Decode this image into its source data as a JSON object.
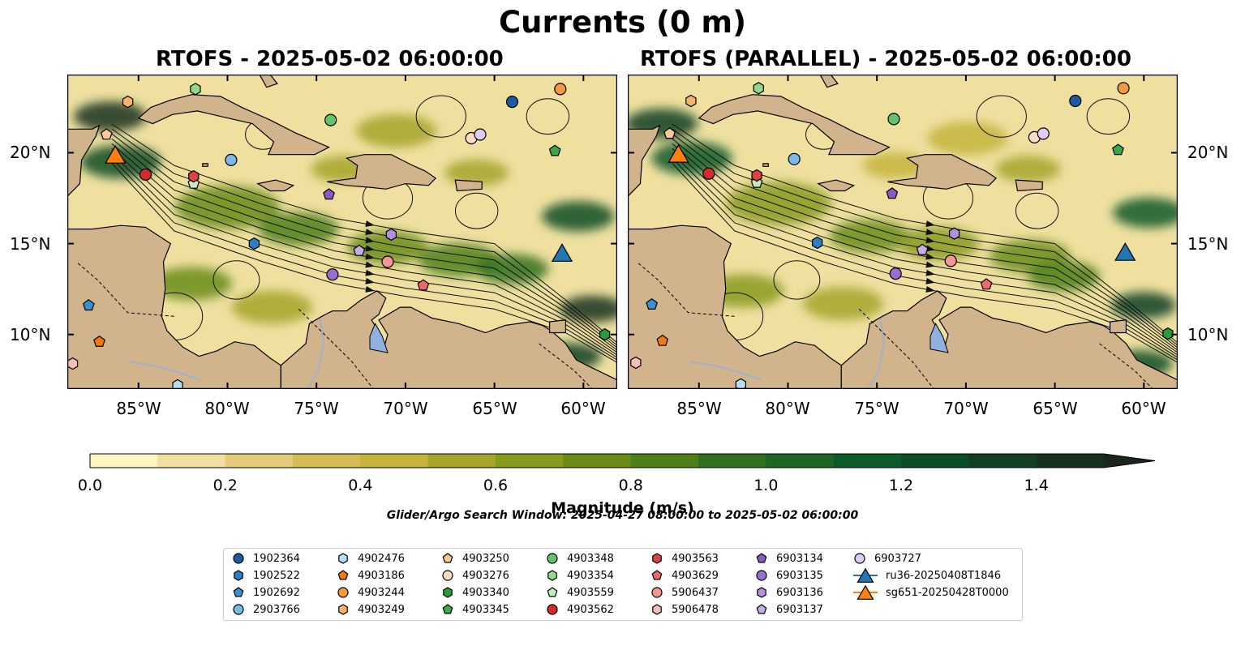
{
  "figure": {
    "title": "Currents (0 m)",
    "panels": [
      {
        "title": "RTOFS - 2025-05-02 06:00:00"
      },
      {
        "title": "RTOFS (PARALLEL) - 2025-05-02 06:00:00"
      }
    ],
    "lon_ticks": [
      "85°W",
      "80°W",
      "75°W",
      "70°W",
      "65°W",
      "60°W"
    ],
    "lat_ticks": [
      "20°N",
      "15°N",
      "10°N"
    ],
    "search_window": "Glider/Argo Search Window: 2025-04-27 08:00:00 to 2025-05-02 06:00:00"
  },
  "colorbar": {
    "label": "Magnitude (m/s)",
    "ticks": [
      "0.0",
      "0.2",
      "0.4",
      "0.6",
      "0.8",
      "1.0",
      "1.2",
      "1.4"
    ],
    "colors": [
      "#fdf6c3",
      "#efe0a0",
      "#e3cb78",
      "#d4bd55",
      "#c4b43c",
      "#a6a52a",
      "#889a1c",
      "#6a8c16",
      "#4e7f1a",
      "#32701f",
      "#1e6526",
      "#0f5a2a",
      "#0c4d27",
      "#123f24",
      "#16321f",
      "#1a261b"
    ]
  },
  "map": {
    "land_color": "#d2b48c",
    "lake_color": "#8fb0e0",
    "river_color": "#9fb0c8"
  },
  "legend": {
    "items": [
      {
        "label": "1902364",
        "marker": "circle",
        "color": "#1f5aa0"
      },
      {
        "label": "1902522",
        "marker": "hexagon",
        "color": "#2c7fc4"
      },
      {
        "label": "1902692",
        "marker": "pentagon",
        "color": "#3c8fd0"
      },
      {
        "label": "2903766",
        "marker": "circle",
        "color": "#7ab8e6"
      },
      {
        "label": "4902476",
        "marker": "hexagon",
        "color": "#b8dcf2"
      },
      {
        "label": "4903186",
        "marker": "pentagon",
        "color": "#f07a10"
      },
      {
        "label": "4903244",
        "marker": "circle",
        "color": "#f59a3c"
      },
      {
        "label": "4903249",
        "marker": "hexagon",
        "color": "#f8b46c"
      },
      {
        "label": "4903250",
        "marker": "pentagon",
        "color": "#fac89a"
      },
      {
        "label": "4903276",
        "marker": "circle",
        "color": "#fcdcbe"
      },
      {
        "label": "4903340",
        "marker": "hexagon",
        "color": "#2a9a3a"
      },
      {
        "label": "4903345",
        "marker": "pentagon",
        "color": "#3aaa48"
      },
      {
        "label": "4903348",
        "marker": "circle",
        "color": "#64c46c"
      },
      {
        "label": "4903354",
        "marker": "hexagon",
        "color": "#94d88e"
      },
      {
        "label": "4903559",
        "marker": "pentagon",
        "color": "#c4ecbc"
      },
      {
        "label": "4903562",
        "marker": "circle",
        "color": "#d42a2a"
      },
      {
        "label": "4903563",
        "marker": "hexagon",
        "color": "#dc4444"
      },
      {
        "label": "4903629",
        "marker": "pentagon",
        "color": "#ec6a6a"
      },
      {
        "label": "5906437",
        "marker": "circle",
        "color": "#f49696"
      },
      {
        "label": "5906478",
        "marker": "hexagon",
        "color": "#f8bcbc"
      },
      {
        "label": "6903134",
        "marker": "pentagon",
        "color": "#8a5ac4"
      },
      {
        "label": "6903135",
        "marker": "circle",
        "color": "#9a6ece"
      },
      {
        "label": "6903136",
        "marker": "hexagon",
        "color": "#b490dc"
      },
      {
        "label": "6903137",
        "marker": "pentagon",
        "color": "#c8acea"
      },
      {
        "label": "6903727",
        "marker": "circle",
        "color": "#e0ccf4"
      },
      {
        "label": "ru36-20250408T1846",
        "marker": "triangle",
        "color": "#1f77b4"
      },
      {
        "label": "sg651-20250428T0000",
        "marker": "triangle",
        "color": "#ff7f0e"
      }
    ]
  },
  "observations": [
    {
      "id": "1902364",
      "lon": -64.0,
      "lat": 22.8
    },
    {
      "id": "1902522",
      "lon": -78.5,
      "lat": 15.0
    },
    {
      "id": "1902692",
      "lon": -87.8,
      "lat": 11.6
    },
    {
      "id": "2903766",
      "lon": -79.8,
      "lat": 19.6
    },
    {
      "id": "4902476",
      "lon": -82.8,
      "lat": 7.2
    },
    {
      "id": "4903186",
      "lon": -87.2,
      "lat": 9.6
    },
    {
      "id": "4903244",
      "lon": -61.3,
      "lat": 23.5
    },
    {
      "id": "4903249",
      "lon": -85.6,
      "lat": 22.8
    },
    {
      "id": "4903250",
      "lon": -86.8,
      "lat": 21.0
    },
    {
      "id": "4903276",
      "lon": -66.3,
      "lat": 20.8
    },
    {
      "id": "4903340",
      "lon": -58.8,
      "lat": 10.0
    },
    {
      "id": "4903345",
      "lon": -61.6,
      "lat": 20.1
    },
    {
      "id": "4903348",
      "lon": -74.2,
      "lat": 21.8
    },
    {
      "id": "4903354",
      "lon": -81.8,
      "lat": 23.5
    },
    {
      "id": "4903559",
      "lon": -81.9,
      "lat": 18.3
    },
    {
      "id": "4903562",
      "lon": -84.6,
      "lat": 18.8
    },
    {
      "id": "4903563",
      "lon": -81.9,
      "lat": 18.7
    },
    {
      "id": "4903629",
      "lon": -69.0,
      "lat": 12.7
    },
    {
      "id": "5906437",
      "lon": -71.0,
      "lat": 14.0
    },
    {
      "id": "5906478",
      "lon": -88.7,
      "lat": 8.4
    },
    {
      "id": "6903134",
      "lon": -74.3,
      "lat": 17.7
    },
    {
      "id": "6903135",
      "lon": -74.1,
      "lat": 13.3
    },
    {
      "id": "6903136",
      "lon": -70.8,
      "lat": 15.5
    },
    {
      "id": "6903137",
      "lon": -72.6,
      "lat": 14.6
    },
    {
      "id": "6903727",
      "lon": -65.8,
      "lat": 21.0
    },
    {
      "id": "ru36-20250408T1846",
      "lon": -61.2,
      "lat": 14.5
    },
    {
      "id": "sg651-20250428T0000",
      "lon": -86.3,
      "lat": 19.9
    }
  ]
}
